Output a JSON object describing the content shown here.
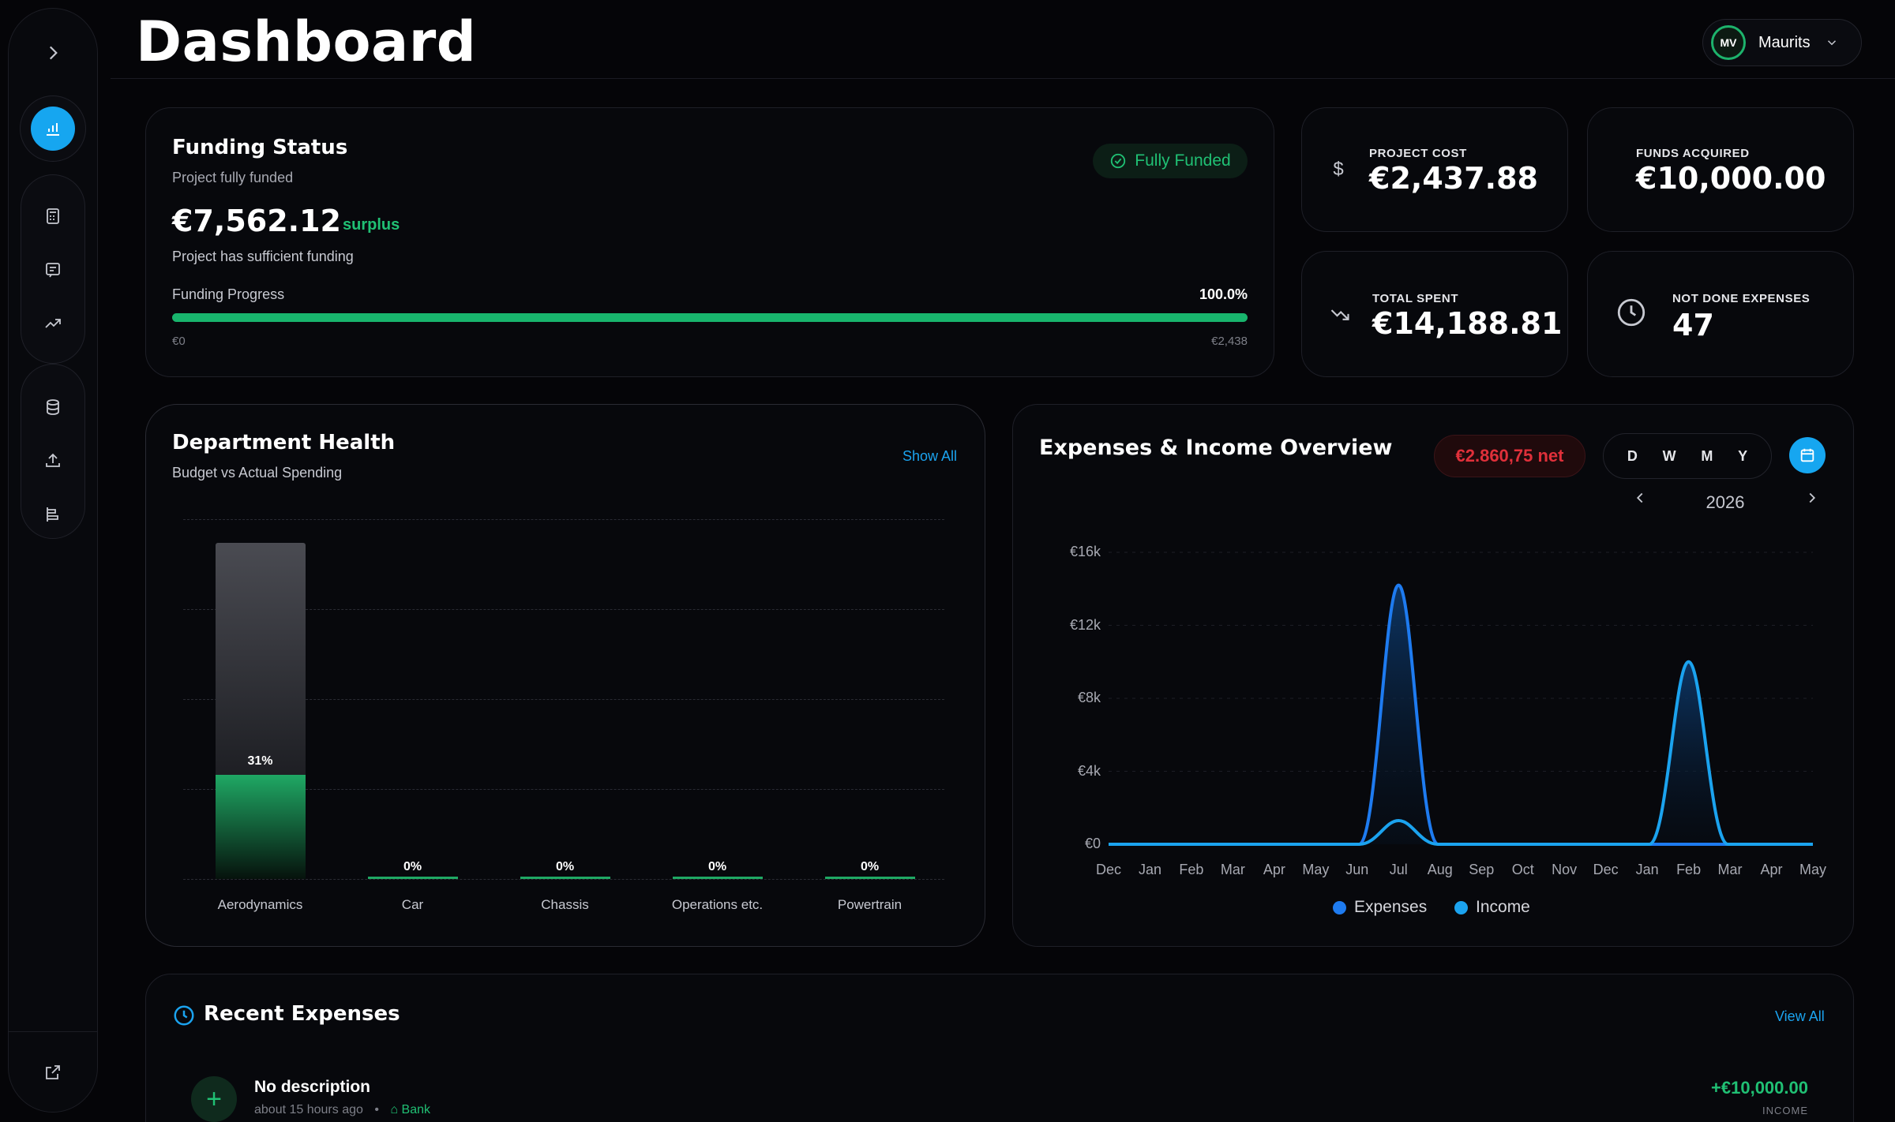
{
  "header": {
    "title": "Dashboard",
    "user": {
      "initials": "MV",
      "name": "Maurits"
    }
  },
  "sidebar": {
    "icons": [
      "chevron-right-icon",
      "bar-chart-icon",
      "calculator-icon",
      "receipt-icon",
      "trend-up-icon",
      "database-icon",
      "upload-icon",
      "gantt-icon",
      "external-link-icon"
    ],
    "active": "bar-chart-icon"
  },
  "funding": {
    "title": "Funding Status",
    "subtitle": "Project fully funded",
    "badge": "Fully Funded",
    "amount": "€7,562.12",
    "surplus_label": "surplus",
    "note": "Project has sufficient funding",
    "progress_label": "Funding Progress",
    "progress_pct_text": "100.0%",
    "progress_fraction": 1.0,
    "range_min": "€0",
    "range_max": "€2,438"
  },
  "stats": {
    "project_cost": {
      "label": "PROJECT COST",
      "value": "€2,437.88",
      "icon": "dollar-icon"
    },
    "funds_acquired": {
      "label": "FUNDS ACQUIRED",
      "value": "€10,000.00"
    },
    "total_spent": {
      "label": "TOTAL SPENT",
      "value": "€14,188.81",
      "icon": "trend-down-icon"
    },
    "not_done": {
      "label": "NOT DONE EXPENSES",
      "value": "47",
      "icon": "clock-icon"
    }
  },
  "department": {
    "title": "Department Health",
    "subtitle": "Budget vs Actual Spending",
    "show_all": "Show All",
    "chart_data": {
      "type": "bar",
      "categories": [
        "Aerodynamics",
        "Car",
        "Chassis",
        "Operations etc.",
        "Powertrain"
      ],
      "values": [
        31,
        0,
        0,
        0,
        0
      ],
      "value_labels": [
        "31%",
        "0%",
        "0%",
        "0%",
        "0%"
      ],
      "grid": true
    }
  },
  "overview": {
    "title": "Expenses & Income Overview",
    "net": "€2.860,75 net",
    "ranges": [
      "D",
      "W",
      "M",
      "Y"
    ],
    "year": "2026",
    "legend": {
      "expenses": "Expenses",
      "income": "Income"
    },
    "colors": {
      "expenses": "#1e7bf0",
      "income": "#1ba3ef"
    },
    "chart_data": {
      "type": "line",
      "x": [
        "Dec",
        "Jan",
        "Feb",
        "Mar",
        "Apr",
        "May",
        "Jun",
        "Jul",
        "Aug",
        "Sep",
        "Oct",
        "Nov",
        "Dec",
        "Jan",
        "Feb",
        "Mar",
        "Apr",
        "May"
      ],
      "y_ticks": [
        "€0",
        "€4k",
        "€8k",
        "€12k",
        "€16k"
      ],
      "ylim": [
        0,
        16000
      ],
      "series": [
        {
          "name": "Expenses",
          "values": [
            0,
            0,
            0,
            0,
            0,
            0,
            0,
            14200,
            0,
            0,
            0,
            0,
            0,
            0,
            0,
            0,
            0,
            0
          ]
        },
        {
          "name": "Income",
          "values": [
            0,
            0,
            0,
            0,
            0,
            0,
            0,
            1300,
            0,
            0,
            0,
            0,
            0,
            0,
            10000,
            0,
            0,
            0
          ]
        }
      ],
      "grid": true,
      "legend": "bottom"
    }
  },
  "recent": {
    "title": "Recent Expenses",
    "view_all": "View All",
    "items": [
      {
        "description": "No description",
        "time": "about 15 hours ago",
        "source": "Bank",
        "amount": "+€10,000.00",
        "type": "INCOME"
      }
    ]
  }
}
